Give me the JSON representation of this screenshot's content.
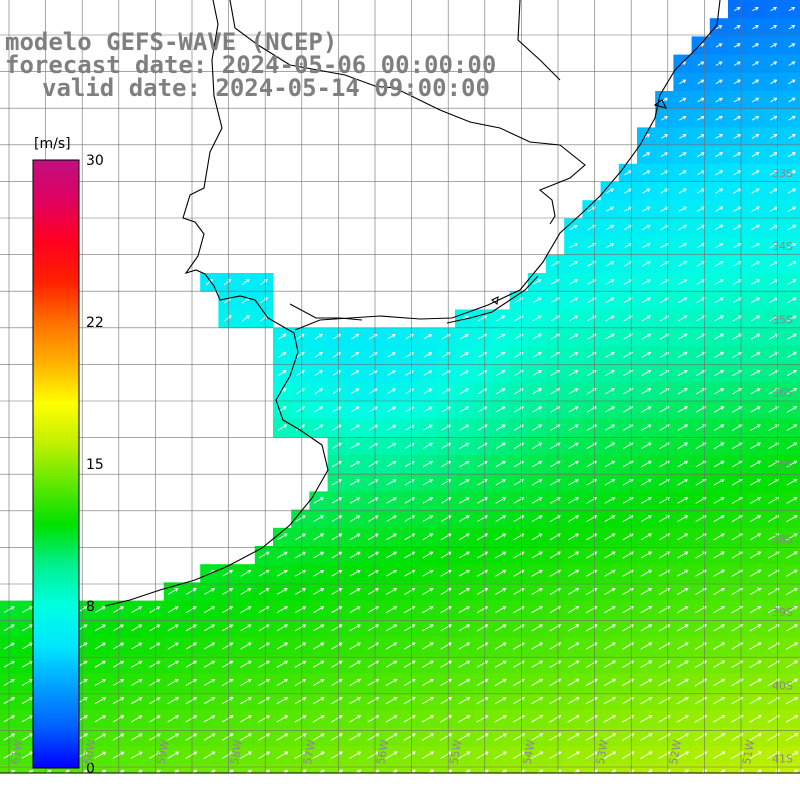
{
  "title": {
    "line1": "modelo GEFS-WAVE (NCEP)",
    "line2": "forecast date: 2024-05-06 00:00:00",
    "line3": "valid date: 2024-05-14 09:00:00"
  },
  "colorbar": {
    "unit": "[m/s]",
    "ticks": [
      {
        "value": 30,
        "label": "30"
      },
      {
        "value": 22,
        "label": "22"
      },
      {
        "value": 15,
        "label": "15"
      },
      {
        "value": 8,
        "label": "8"
      },
      {
        "value": 0,
        "label": "0"
      }
    ],
    "min": 0,
    "max": 30,
    "colors": [
      "#0000ff",
      "#0060ff",
      "#00a0ff",
      "#00e6ff",
      "#00ffe0",
      "#00f090",
      "#00e000",
      "#60e800",
      "#c0f000",
      "#ffff00",
      "#ffb000",
      "#ff7000",
      "#ff2000",
      "#ff0020",
      "#e00060",
      "#c01080"
    ]
  },
  "map_data": {
    "variable": "wind speed and direction",
    "units": "m/s",
    "lon_range": [
      -61,
      -50
    ],
    "lat_range": [
      -41.2,
      -31.3
    ],
    "lat_labels": [
      "33S",
      "34S",
      "35S",
      "36S",
      "37S",
      "38S",
      "39S",
      "40S",
      "41S"
    ],
    "lon_labels": [
      "61W",
      "60W",
      "59W",
      "58W",
      "57W",
      "56W",
      "55W",
      "54W",
      "53W",
      "52W",
      "51W"
    ],
    "wind_direction": "from southwest, turning from south in the north-west of the domain",
    "speed_range_estimate": [
      3,
      16
    ]
  }
}
